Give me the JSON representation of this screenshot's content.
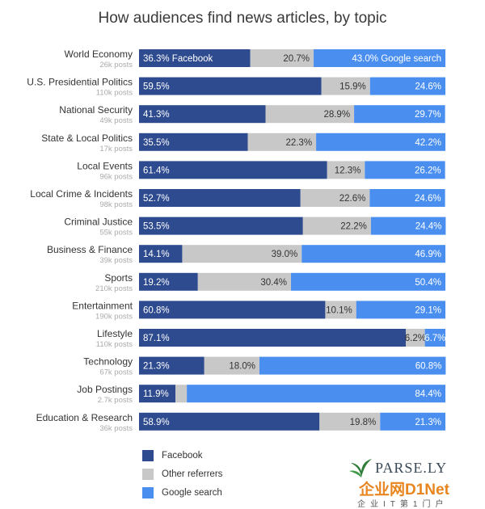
{
  "chart_data": {
    "type": "bar",
    "stacked": true,
    "orientation": "horizontal",
    "normalized": true,
    "title": "How audiences find news articles, by topic",
    "categories": [
      {
        "topic": "World Economy",
        "posts": "26k posts"
      },
      {
        "topic": "U.S. Presidential Politics",
        "posts": "110k posts"
      },
      {
        "topic": "National Security",
        "posts": "49k posts"
      },
      {
        "topic": "State & Local Politics",
        "posts": "17k posts"
      },
      {
        "topic": "Local Events",
        "posts": "96k posts"
      },
      {
        "topic": "Local Crime & Incidents",
        "posts": "98k posts"
      },
      {
        "topic": "Criminal Justice",
        "posts": "55k posts"
      },
      {
        "topic": "Business & Finance",
        "posts": "39k posts"
      },
      {
        "topic": "Sports",
        "posts": "210k posts"
      },
      {
        "topic": "Entertainment",
        "posts": "190k posts"
      },
      {
        "topic": "Lifestyle",
        "posts": "110k posts"
      },
      {
        "topic": "Technology",
        "posts": "67k posts"
      },
      {
        "topic": "Job Postings",
        "posts": "2.7k posts"
      },
      {
        "topic": "Education & Research",
        "posts": "36k posts"
      }
    ],
    "series": [
      {
        "name": "Facebook",
        "color": "#2e4b8f",
        "values": [
          36.3,
          59.5,
          41.3,
          35.5,
          61.4,
          52.7,
          53.5,
          14.1,
          19.2,
          60.8,
          87.1,
          21.3,
          11.9,
          58.9
        ],
        "labels": [
          "36.3% Facebook",
          "59.5%",
          "41.3%",
          "35.5%",
          "61.4%",
          "52.7%",
          "53.5%",
          "14.1%",
          "19.2%",
          "60.8%",
          "87.1%",
          "21.3%",
          "11.9%",
          "58.9%"
        ]
      },
      {
        "name": "Other referrers",
        "color": "#c8c8c8",
        "values": [
          20.7,
          15.9,
          28.9,
          22.3,
          12.3,
          22.6,
          22.2,
          39.0,
          30.4,
          10.1,
          6.2,
          18.0,
          3.7,
          19.8
        ],
        "labels": [
          "20.7%",
          "15.9%",
          "28.9%",
          "22.3%",
          "12.3%",
          "22.6%",
          "22.2%",
          "39.0%",
          "30.4%",
          "10.1%",
          "6.2%",
          "18.0%",
          "",
          "19.8%"
        ]
      },
      {
        "name": "Google search",
        "color": "#4a8ff0",
        "values": [
          43.0,
          24.6,
          29.7,
          42.2,
          26.2,
          24.6,
          24.4,
          46.9,
          50.4,
          29.1,
          6.7,
          60.8,
          84.4,
          21.3
        ],
        "labels": [
          "43.0% Google search",
          "24.6%",
          "29.7%",
          "42.2%",
          "26.2%",
          "24.6%",
          "24.4%",
          "46.9%",
          "50.4%",
          "29.1%",
          "6.7%",
          "60.8%",
          "84.4%",
          "21.3%"
        ]
      }
    ],
    "xlim": [
      0,
      100
    ],
    "legend": "bottom-left"
  },
  "legend": [
    {
      "name": "Facebook",
      "color": "#2e4b8f"
    },
    {
      "name": "Other referrers",
      "color": "#c8c8c8"
    },
    {
      "name": "Google search",
      "color": "#4a8ff0"
    }
  ],
  "brand": {
    "name": "PARSE.LY"
  },
  "watermark": {
    "main": "企业网D1Net",
    "sub": "企业IT第1门户"
  }
}
